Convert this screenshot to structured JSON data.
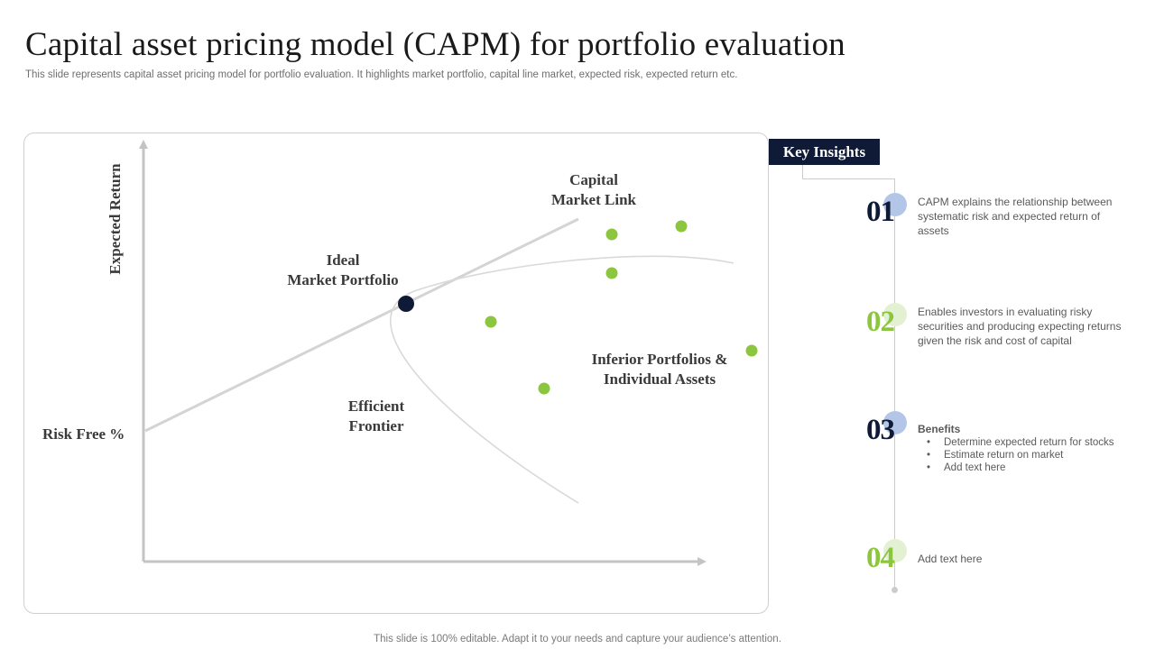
{
  "title": "Capital asset pricing model (CAPM) for portfolio evaluation",
  "subtitle": "This slide represents capital asset pricing model for portfolio evaluation. It highlights market portfolio, capital line market, expected risk, expected return etc.",
  "footer": "This slide is 100% editable. Adapt it to your needs and capture your audience’s attention.",
  "diagram": {
    "y_axis_label": "Expected Return",
    "risk_free_label": "Risk Free %",
    "capital_market_label": [
      "Capital",
      "Market Link"
    ],
    "ideal_portfolio_label": [
      "Ideal",
      "Market Portfolio"
    ],
    "efficient_frontier_label": [
      "Efficient",
      "Frontier"
    ],
    "inferior_label": [
      "Inferior Portfolios &",
      "Individual Assets"
    ],
    "colors": {
      "axis": "#c4c4c4",
      "line": "#d4d4d4",
      "curve": "#d9d9d9",
      "ideal_point": "#0f1a36",
      "asset_point": "#8cc63f"
    }
  },
  "key_insights": {
    "header": "Key Insights",
    "items": [
      {
        "number": "01",
        "number_color": "#0f1a36",
        "circle_color": "#b4c6e7",
        "text": "CAPM explains the relationship between systematic risk and expected return of assets"
      },
      {
        "number": "02",
        "number_color": "#8cc63f",
        "circle_color": "#e3f0d2",
        "text": "Enables investors in evaluating risky securities and producing expecting returns given the risk and cost of capital"
      },
      {
        "number": "03",
        "number_color": "#0f1a36",
        "circle_color": "#b4c6e7",
        "title": "Benefits",
        "bullets": [
          "Determine expected return for stocks",
          "Estimate return on market",
          "Add text here"
        ]
      },
      {
        "number": "04",
        "number_color": "#8cc63f",
        "circle_color": "#e3f0d2",
        "text": "Add text here"
      }
    ]
  }
}
